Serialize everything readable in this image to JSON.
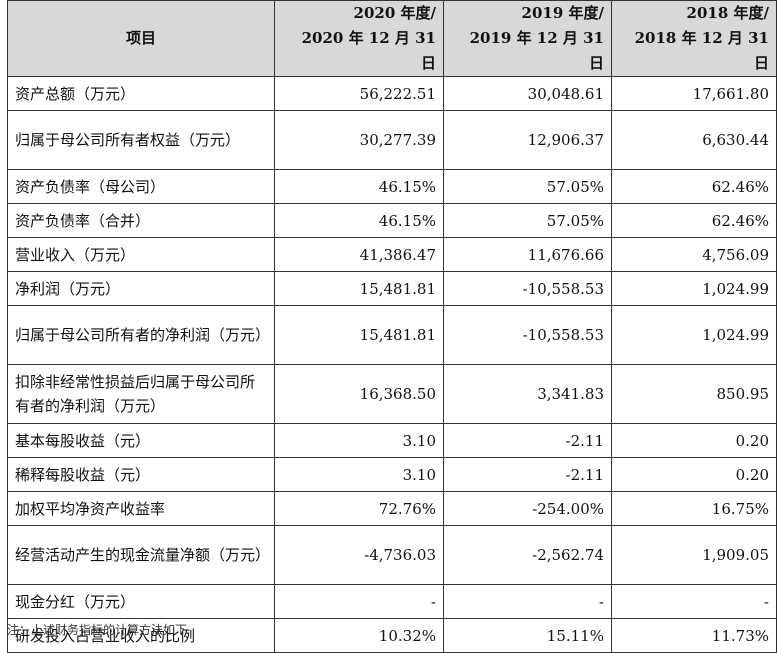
{
  "table": {
    "headers": {
      "item": "项目",
      "years": [
        {
          "line1": "2020 年度/",
          "line2": "2020 年 12 月 31 日"
        },
        {
          "line1": "2019 年度/",
          "line2": "2019 年 12 月 31 日"
        },
        {
          "line1": "2018 年度/",
          "line2": "2018 年 12 月 31 日"
        }
      ]
    },
    "rows": [
      {
        "label": "资产总额（万元）",
        "values": [
          "56,222.51",
          "30,048.61",
          "17,661.80"
        ]
      },
      {
        "label": "归属于母公司所有者权益（万元）",
        "values": [
          "30,277.39",
          "12,906.37",
          "6,630.44"
        ]
      },
      {
        "label": "资产负债率（母公司）",
        "values": [
          "46.15%",
          "57.05%",
          "62.46%"
        ]
      },
      {
        "label": "资产负债率（合并）",
        "values": [
          "46.15%",
          "57.05%",
          "62.46%"
        ]
      },
      {
        "label": "营业收入（万元）",
        "values": [
          "41,386.47",
          "11,676.66",
          "4,756.09"
        ]
      },
      {
        "label": "净利润（万元）",
        "values": [
          "15,481.81",
          "-10,558.53",
          "1,024.99"
        ]
      },
      {
        "label": "归属于母公司所有者的净利润（万元）",
        "values": [
          "15,481.81",
          "-10,558.53",
          "1,024.99"
        ]
      },
      {
        "label": "扣除非经常性损益后归属于母公司所有者的净利润（万元）",
        "values": [
          "16,368.50",
          "3,341.83",
          "850.95"
        ]
      },
      {
        "label": "基本每股收益（元）",
        "values": [
          "3.10",
          "-2.11",
          "0.20"
        ]
      },
      {
        "label": "稀释每股收益（元）",
        "values": [
          "3.10",
          "-2.11",
          "0.20"
        ]
      },
      {
        "label": "加权平均净资产收益率",
        "values": [
          "72.76%",
          "-254.00%",
          "16.75%"
        ]
      },
      {
        "label": "经营活动产生的现金流量净额（万元）",
        "values": [
          "-4,736.03",
          "-2,562.74",
          "1,909.05"
        ]
      },
      {
        "label": "现金分红（万元）",
        "values": [
          "-",
          "-",
          "-"
        ]
      },
      {
        "label": "研发投入占营业收入的比例",
        "values": [
          "10.32%",
          "15.11%",
          "11.73%"
        ]
      }
    ]
  },
  "footnote": "注：上述财务指标的计算方法如下"
}
